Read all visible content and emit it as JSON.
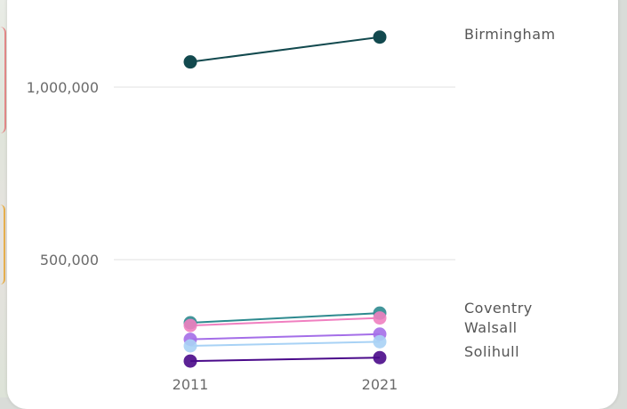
{
  "chart_data": {
    "type": "line",
    "title": "",
    "xlabel": "",
    "ylabel": "",
    "x": [
      "2011",
      "2021"
    ],
    "y_ticks": [
      {
        "value": 500000,
        "label": "500,000"
      },
      {
        "value": 1000000,
        "label": "1,000,000"
      }
    ],
    "ylim": [
      0,
      1230000
    ],
    "grid": true,
    "series": [
      {
        "name": "Birmingham",
        "values": [
          1073000,
          1145000
        ],
        "color": "#12494e",
        "labeled": true
      },
      {
        "name": "Coventry",
        "values": [
          317000,
          345000
        ],
        "color": "#2e8a8f",
        "labeled": true
      },
      {
        "name": "",
        "values": [
          309000,
          331000
        ],
        "color": "#f07fc0",
        "labeled": false
      },
      {
        "name": "Walsall",
        "values": [
          269000,
          284000
        ],
        "color": "#a46ee8",
        "labeled": true
      },
      {
        "name": "",
        "values": [
          250000,
          262000
        ],
        "color": "#a8d2f5",
        "labeled": false
      },
      {
        "name": "Solihull",
        "values": [
          206000,
          216000
        ],
        "color": "#4a0a8a",
        "labeled": true
      }
    ],
    "label_offsets_note": ""
  }
}
